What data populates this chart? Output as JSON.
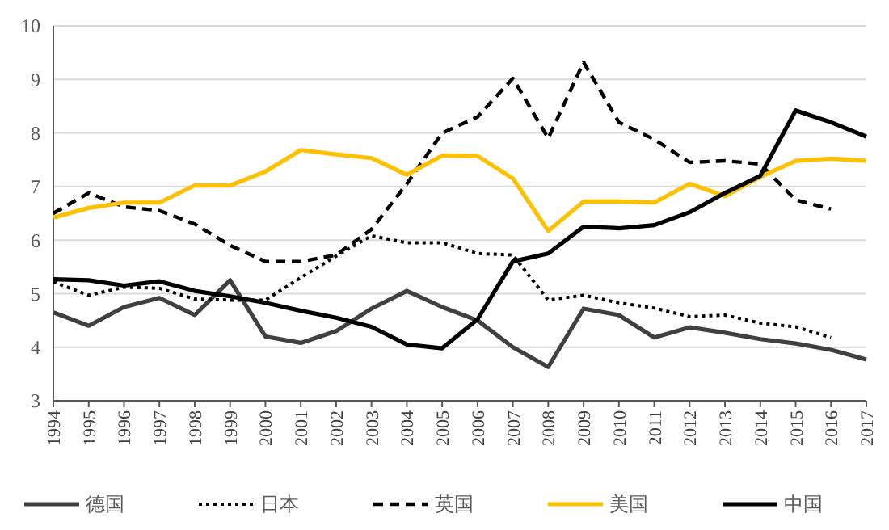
{
  "chart_data": {
    "type": "line",
    "categories": [
      "1994",
      "1995",
      "1996",
      "1997",
      "1998",
      "1999",
      "2000",
      "2001",
      "2002",
      "2003",
      "2004",
      "2005",
      "2006",
      "2007",
      "2008",
      "2009",
      "2010",
      "2011",
      "2012",
      "2013",
      "2014",
      "2015",
      "2016",
      "2017"
    ],
    "ylim": [
      3,
      10
    ],
    "yticks": [
      3,
      4,
      5,
      6,
      7,
      8,
      9,
      10
    ],
    "grid": "y",
    "legend": "bottom",
    "marker": "none",
    "series": [
      {
        "name": "德国",
        "color": "#404040",
        "line_style": "solid",
        "values": [
          4.65,
          4.4,
          4.75,
          4.92,
          4.6,
          5.25,
          4.2,
          4.08,
          4.3,
          4.72,
          5.05,
          4.75,
          4.5,
          4.0,
          3.63,
          4.72,
          4.6,
          4.18,
          4.37,
          4.27,
          4.15,
          4.07,
          3.95,
          3.77
        ]
      },
      {
        "name": "日本",
        "color": "#000000",
        "line_style": "dotted",
        "values": [
          5.22,
          4.97,
          5.12,
          5.1,
          4.9,
          4.88,
          4.88,
          5.3,
          5.7,
          6.08,
          5.95,
          5.95,
          5.75,
          5.72,
          4.88,
          4.97,
          4.83,
          4.73,
          4.57,
          4.6,
          4.45,
          4.38,
          4.18,
          null
        ]
      },
      {
        "name": "英国",
        "color": "#000000",
        "line_style": "dashed",
        "values": [
          6.5,
          6.88,
          6.62,
          6.55,
          6.3,
          5.9,
          5.6,
          5.6,
          5.72,
          6.2,
          7.05,
          8.0,
          8.3,
          9.02,
          7.9,
          9.32,
          8.2,
          7.88,
          7.45,
          7.48,
          7.42,
          6.75,
          6.58,
          null
        ]
      },
      {
        "name": "美国",
        "color": "#ffc000",
        "line_style": "solid",
        "values": [
          6.42,
          6.6,
          6.7,
          6.7,
          7.02,
          7.02,
          7.28,
          7.68,
          7.6,
          7.53,
          7.22,
          7.58,
          7.57,
          7.15,
          6.17,
          6.72,
          6.72,
          6.7,
          7.05,
          6.82,
          7.18,
          7.48,
          7.52,
          7.48
        ]
      },
      {
        "name": "中国",
        "color": "#000000",
        "line_style": "solid",
        "values": [
          5.27,
          5.25,
          5.15,
          5.23,
          5.05,
          4.95,
          4.83,
          4.68,
          4.55,
          4.38,
          4.05,
          3.98,
          4.52,
          5.6,
          5.75,
          6.25,
          6.22,
          6.28,
          6.52,
          6.88,
          7.2,
          8.42,
          8.2,
          7.93
        ]
      }
    ]
  }
}
